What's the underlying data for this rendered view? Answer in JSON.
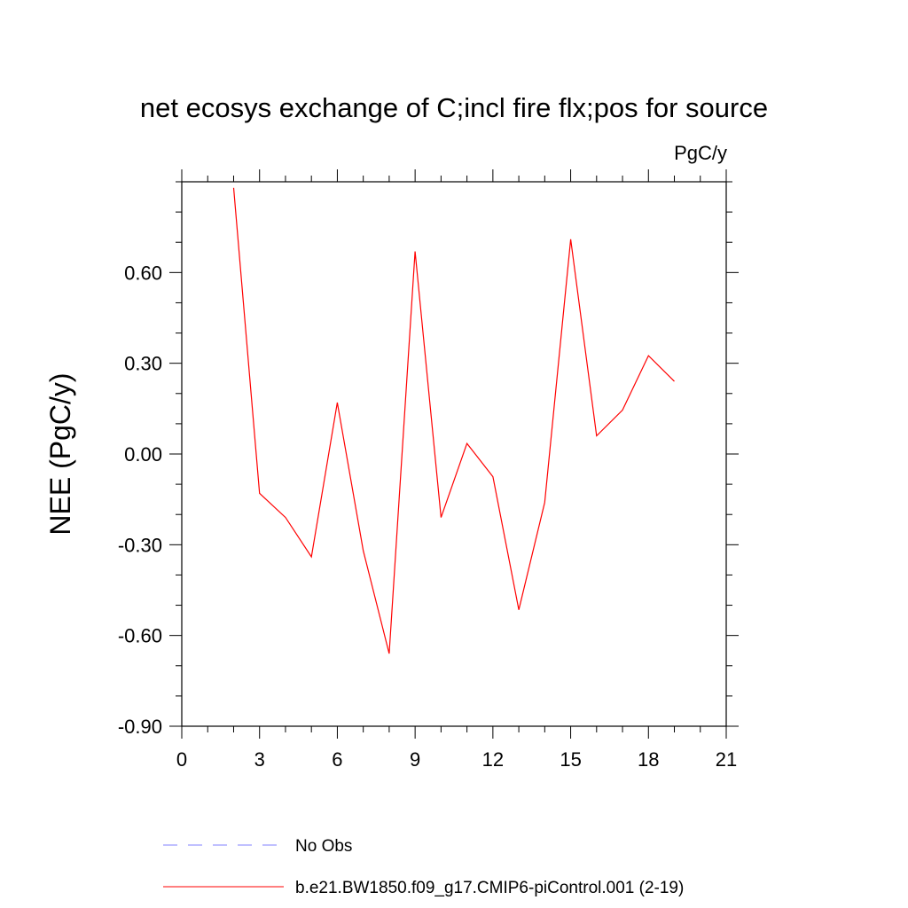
{
  "chart_data": {
    "type": "line",
    "title": "net ecosys exchange of C;incl fire flx;pos for source",
    "units": "PgC/y",
    "ylabel": "NEE  (PgC/y)",
    "xlabel": "",
    "xlim": [
      0,
      21
    ],
    "ylim": [
      -0.9,
      0.9
    ],
    "x_ticks": [
      0,
      3,
      6,
      9,
      12,
      15,
      18,
      21
    ],
    "x_tick_labels": [
      "0",
      "3",
      "6",
      "9",
      "12",
      "15",
      "18",
      "21"
    ],
    "y_ticks": [
      -0.9,
      -0.6,
      -0.3,
      0.0,
      0.3,
      0.6
    ],
    "y_tick_labels": [
      "-0.90",
      "-0.60",
      "-0.30",
      "0.00",
      "0.30",
      "0.60"
    ],
    "grid": false,
    "legend_position": "bottom",
    "series": [
      {
        "name": "No Obs",
        "color": "#8080ff",
        "style": "dashed",
        "x": [],
        "values": []
      },
      {
        "name": "b.e21.BW1850.f09_g17.CMIP6-piControl.001 (2-19)",
        "color": "#ff0000",
        "style": "solid",
        "x": [
          2,
          3,
          4,
          5,
          6,
          7,
          8,
          9,
          10,
          11,
          12,
          13,
          14,
          15,
          16,
          17,
          18,
          19
        ],
        "values": [
          0.88,
          -0.13,
          -0.21,
          -0.34,
          0.17,
          -0.32,
          -0.66,
          0.67,
          -0.21,
          0.035,
          -0.075,
          -0.515,
          -0.16,
          0.71,
          0.06,
          0.145,
          0.325,
          0.24
        ]
      }
    ]
  }
}
